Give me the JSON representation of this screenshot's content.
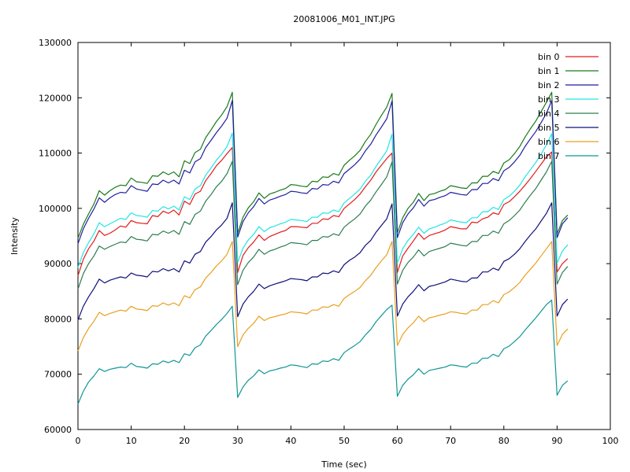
{
  "chart_data": {
    "type": "line",
    "title": "20081006_M01_INT.JPG",
    "xlabel": "Time (sec)",
    "ylabel": "Intensity",
    "xlim": [
      0,
      100
    ],
    "ylim": [
      60000,
      130000
    ],
    "xticks": [
      "0",
      "10",
      "20",
      "30",
      "40",
      "50",
      "60",
      "70",
      "80",
      "90",
      "100"
    ],
    "yticks": [
      "60000",
      "70000",
      "80000",
      "90000",
      "100000",
      "110000",
      "120000",
      "130000"
    ],
    "grid": false,
    "legend_position": "top-right",
    "x": [
      0,
      1,
      2,
      3,
      4,
      5,
      6,
      7,
      8,
      9,
      10,
      11,
      12,
      13,
      14,
      15,
      16,
      17,
      18,
      19,
      20,
      21,
      22,
      23,
      24,
      25,
      26,
      27,
      28,
      29,
      30,
      31,
      32,
      33,
      34,
      35,
      36,
      37,
      38,
      39,
      40,
      41,
      42,
      43,
      44,
      45,
      46,
      47,
      48,
      49,
      50,
      51,
      52,
      53,
      54,
      55,
      56,
      57,
      58,
      59,
      60,
      61,
      62,
      63,
      64,
      65,
      66,
      67,
      68,
      69,
      70,
      71,
      72,
      73,
      74,
      75,
      76,
      77,
      78,
      79,
      80,
      81,
      82,
      83,
      84,
      85,
      86,
      87,
      88,
      89,
      90,
      91,
      92
    ],
    "series": [
      {
        "name": "bin 0",
        "color": "#e31a1c",
        "values": [
          87800,
          90800,
          92700,
          94100,
          96000,
          95100,
          95500,
          96100,
          96800,
          96600,
          97800,
          97400,
          97300,
          97200,
          98700,
          98500,
          99500,
          99100,
          99700,
          98800,
          101300,
          100700,
          102600,
          103100,
          105000,
          106300,
          107700,
          108700,
          109900,
          111000,
          88400,
          91500,
          92900,
          93900,
          95200,
          94200,
          94900,
          95300,
          95700,
          96000,
          96700,
          96700,
          96600,
          96500,
          97300,
          97300,
          98100,
          98000,
          98700,
          98500,
          100000,
          100800,
          101600,
          102600,
          103900,
          105100,
          106600,
          107800,
          109000,
          110000,
          88400,
          91400,
          92800,
          94100,
          95500,
          94400,
          95100,
          95400,
          95700,
          96100,
          96700,
          96500,
          96300,
          96300,
          97500,
          97400,
          98100,
          98400,
          99200,
          98900,
          100700,
          101200,
          102100,
          103100,
          104200,
          105400,
          106700,
          108000,
          109300,
          110200,
          88500,
          90000,
          90900
        ]
      },
      {
        "name": "bin 1",
        "color": "#1a7a1a",
        "values": [
          94600,
          97100,
          99000,
          100800,
          103200,
          102400,
          103200,
          103800,
          104200,
          104100,
          105500,
          104800,
          104700,
          104500,
          105900,
          105800,
          106600,
          106100,
          106600,
          105700,
          108600,
          108100,
          110100,
          110700,
          112800,
          114200,
          115700,
          116900,
          118400,
          121000,
          95500,
          98400,
          100100,
          101200,
          102800,
          101800,
          102600,
          102900,
          103300,
          103600,
          104300,
          104200,
          104000,
          103900,
          104900,
          104800,
          105700,
          105600,
          106300,
          106000,
          107800,
          108700,
          109500,
          110500,
          112100,
          113400,
          115200,
          116800,
          118300,
          120800,
          95600,
          98300,
          100000,
          101100,
          102700,
          101400,
          102500,
          102700,
          103100,
          103400,
          104100,
          103900,
          103700,
          103600,
          104600,
          104600,
          105800,
          105800,
          106700,
          106300,
          108200,
          108800,
          109900,
          111200,
          112900,
          114400,
          115800,
          117500,
          119200,
          121000,
          95400,
          97800,
          98800
        ]
      },
      {
        "name": "bin 2",
        "color": "#1f1fa0",
        "values": [
          93600,
          96300,
          98200,
          99900,
          101900,
          101100,
          101900,
          102500,
          102900,
          102800,
          104100,
          103500,
          103300,
          103100,
          104400,
          104300,
          105100,
          104600,
          105100,
          104400,
          106900,
          106400,
          108400,
          109000,
          111000,
          112300,
          113700,
          114900,
          116300,
          119500,
          94800,
          97600,
          99200,
          100300,
          101800,
          100800,
          101500,
          101800,
          102200,
          102500,
          103100,
          103000,
          102800,
          102700,
          103600,
          103500,
          104300,
          104200,
          104900,
          104600,
          106300,
          107100,
          107900,
          108900,
          110400,
          111600,
          113300,
          114700,
          116200,
          119400,
          94700,
          97400,
          99000,
          100100,
          101600,
          100400,
          101400,
          101600,
          102000,
          102300,
          102900,
          102700,
          102500,
          102400,
          103400,
          103400,
          104500,
          104500,
          105400,
          105000,
          106800,
          107400,
          108400,
          109600,
          111200,
          112600,
          113900,
          115500,
          117200,
          119500,
          94700,
          97200,
          98300
        ]
      },
      {
        "name": "bin 3",
        "color": "#22e5e5",
        "values": [
          89300,
          92000,
          93800,
          95400,
          97400,
          96700,
          97200,
          97700,
          98200,
          98000,
          99200,
          98700,
          98600,
          98400,
          99600,
          99500,
          100300,
          99900,
          100400,
          99700,
          102100,
          101600,
          103500,
          104100,
          106000,
          107300,
          108700,
          109800,
          111200,
          113600,
          90200,
          92800,
          94300,
          95300,
          96700,
          95800,
          96500,
          96800,
          97200,
          97500,
          98000,
          97900,
          97800,
          97600,
          98400,
          98400,
          99200,
          99100,
          99700,
          99400,
          101000,
          101800,
          102600,
          103500,
          104900,
          106000,
          107600,
          109000,
          110400,
          113400,
          90100,
          92700,
          94200,
          95300,
          96600,
          95500,
          96300,
          96600,
          97000,
          97300,
          97900,
          97700,
          97500,
          97400,
          98300,
          98300,
          99400,
          99400,
          100200,
          99800,
          101600,
          102200,
          103100,
          104200,
          105700,
          107000,
          108300,
          109800,
          111500,
          113500,
          90100,
          92300,
          93400
        ]
      },
      {
        "name": "bin 4",
        "color": "#2e7d4f",
        "values": [
          85400,
          88200,
          90000,
          91400,
          93200,
          92600,
          93100,
          93500,
          93900,
          93800,
          94900,
          94400,
          94300,
          94100,
          95300,
          95200,
          95900,
          95500,
          96000,
          95300,
          97600,
          97100,
          98900,
          99500,
          101300,
          102500,
          103900,
          104900,
          106300,
          108500,
          86200,
          88800,
          90200,
          91200,
          92600,
          91700,
          92300,
          92600,
          93000,
          93300,
          93800,
          93700,
          93600,
          93400,
          94200,
          94200,
          94900,
          94800,
          95400,
          95100,
          96600,
          97400,
          98100,
          99000,
          100400,
          101500,
          103000,
          104300,
          105700,
          108400,
          86300,
          88800,
          90200,
          91200,
          92500,
          91400,
          92200,
          92500,
          92800,
          93100,
          93700,
          93500,
          93300,
          93200,
          94000,
          94000,
          95100,
          95100,
          95900,
          95500,
          97200,
          97800,
          98700,
          99700,
          101100,
          102400,
          103600,
          105100,
          106600,
          108500,
          86300,
          88400,
          89500
        ]
      },
      {
        "name": "bin 5",
        "color": "#10107a",
        "values": [
          79800,
          82300,
          84000,
          85500,
          87200,
          86500,
          87000,
          87300,
          87600,
          87400,
          88300,
          87900,
          87800,
          87600,
          88600,
          88500,
          89100,
          88700,
          89100,
          88500,
          90500,
          90100,
          91700,
          92200,
          93900,
          94900,
          96100,
          97000,
          98200,
          101000,
          80400,
          82700,
          84000,
          85000,
          86300,
          85500,
          86000,
          86300,
          86600,
          86900,
          87300,
          87200,
          87100,
          86900,
          87600,
          87600,
          88300,
          88200,
          88700,
          88400,
          89800,
          90600,
          91200,
          92000,
          93300,
          94200,
          95700,
          96900,
          98100,
          100800,
          80500,
          82700,
          84000,
          85000,
          86200,
          85100,
          85900,
          86100,
          86400,
          86700,
          87200,
          87000,
          86800,
          86700,
          87400,
          87400,
          88500,
          88500,
          89200,
          88800,
          90400,
          90900,
          91700,
          92700,
          94000,
          95200,
          96300,
          97700,
          99100,
          101000,
          80500,
          82600,
          83600
        ]
      },
      {
        "name": "bin 6",
        "color": "#e8a01e",
        "values": [
          74200,
          76600,
          78300,
          79600,
          81200,
          80600,
          81000,
          81300,
          81600,
          81400,
          82300,
          81800,
          81700,
          81500,
          82400,
          82300,
          82900,
          82500,
          82900,
          82400,
          84200,
          83800,
          85300,
          85800,
          87400,
          88400,
          89600,
          90500,
          91700,
          94000,
          75000,
          77100,
          78300,
          79200,
          80500,
          79700,
          80200,
          80400,
          80700,
          80900,
          81300,
          81200,
          81100,
          80900,
          81600,
          81600,
          82200,
          82100,
          82600,
          82300,
          83700,
          84400,
          85000,
          85700,
          86900,
          87900,
          89300,
          90500,
          91600,
          94000,
          75200,
          77200,
          78400,
          79300,
          80500,
          79500,
          80200,
          80400,
          80700,
          80900,
          81300,
          81200,
          81000,
          80900,
          81600,
          81600,
          82600,
          82600,
          83300,
          82900,
          84400,
          84900,
          85700,
          86600,
          87900,
          89000,
          90100,
          91400,
          92700,
          94000,
          75200,
          77200,
          78200
        ]
      },
      {
        "name": "bin 7",
        "color": "#0f9696",
        "values": [
          64600,
          66900,
          68600,
          69700,
          71000,
          70500,
          70900,
          71100,
          71300,
          71200,
          72000,
          71400,
          71300,
          71100,
          71900,
          71800,
          72400,
          72100,
          72500,
          72100,
          73700,
          73400,
          74800,
          75300,
          76900,
          77900,
          79000,
          79900,
          81000,
          82300,
          65800,
          67700,
          68900,
          69700,
          70800,
          70100,
          70600,
          70800,
          71100,
          71300,
          71700,
          71600,
          71400,
          71200,
          71900,
          71800,
          72400,
          72300,
          72800,
          72500,
          73900,
          74600,
          75200,
          75900,
          77100,
          78100,
          79500,
          80600,
          81700,
          82500,
          66000,
          68000,
          69100,
          69900,
          71000,
          70000,
          70700,
          70900,
          71100,
          71300,
          71700,
          71600,
          71400,
          71300,
          72000,
          72000,
          72900,
          72900,
          73600,
          73200,
          74600,
          75100,
          75900,
          76800,
          78000,
          79100,
          80200,
          81400,
          82600,
          83400,
          66200,
          68000,
          68800
        ]
      }
    ]
  }
}
